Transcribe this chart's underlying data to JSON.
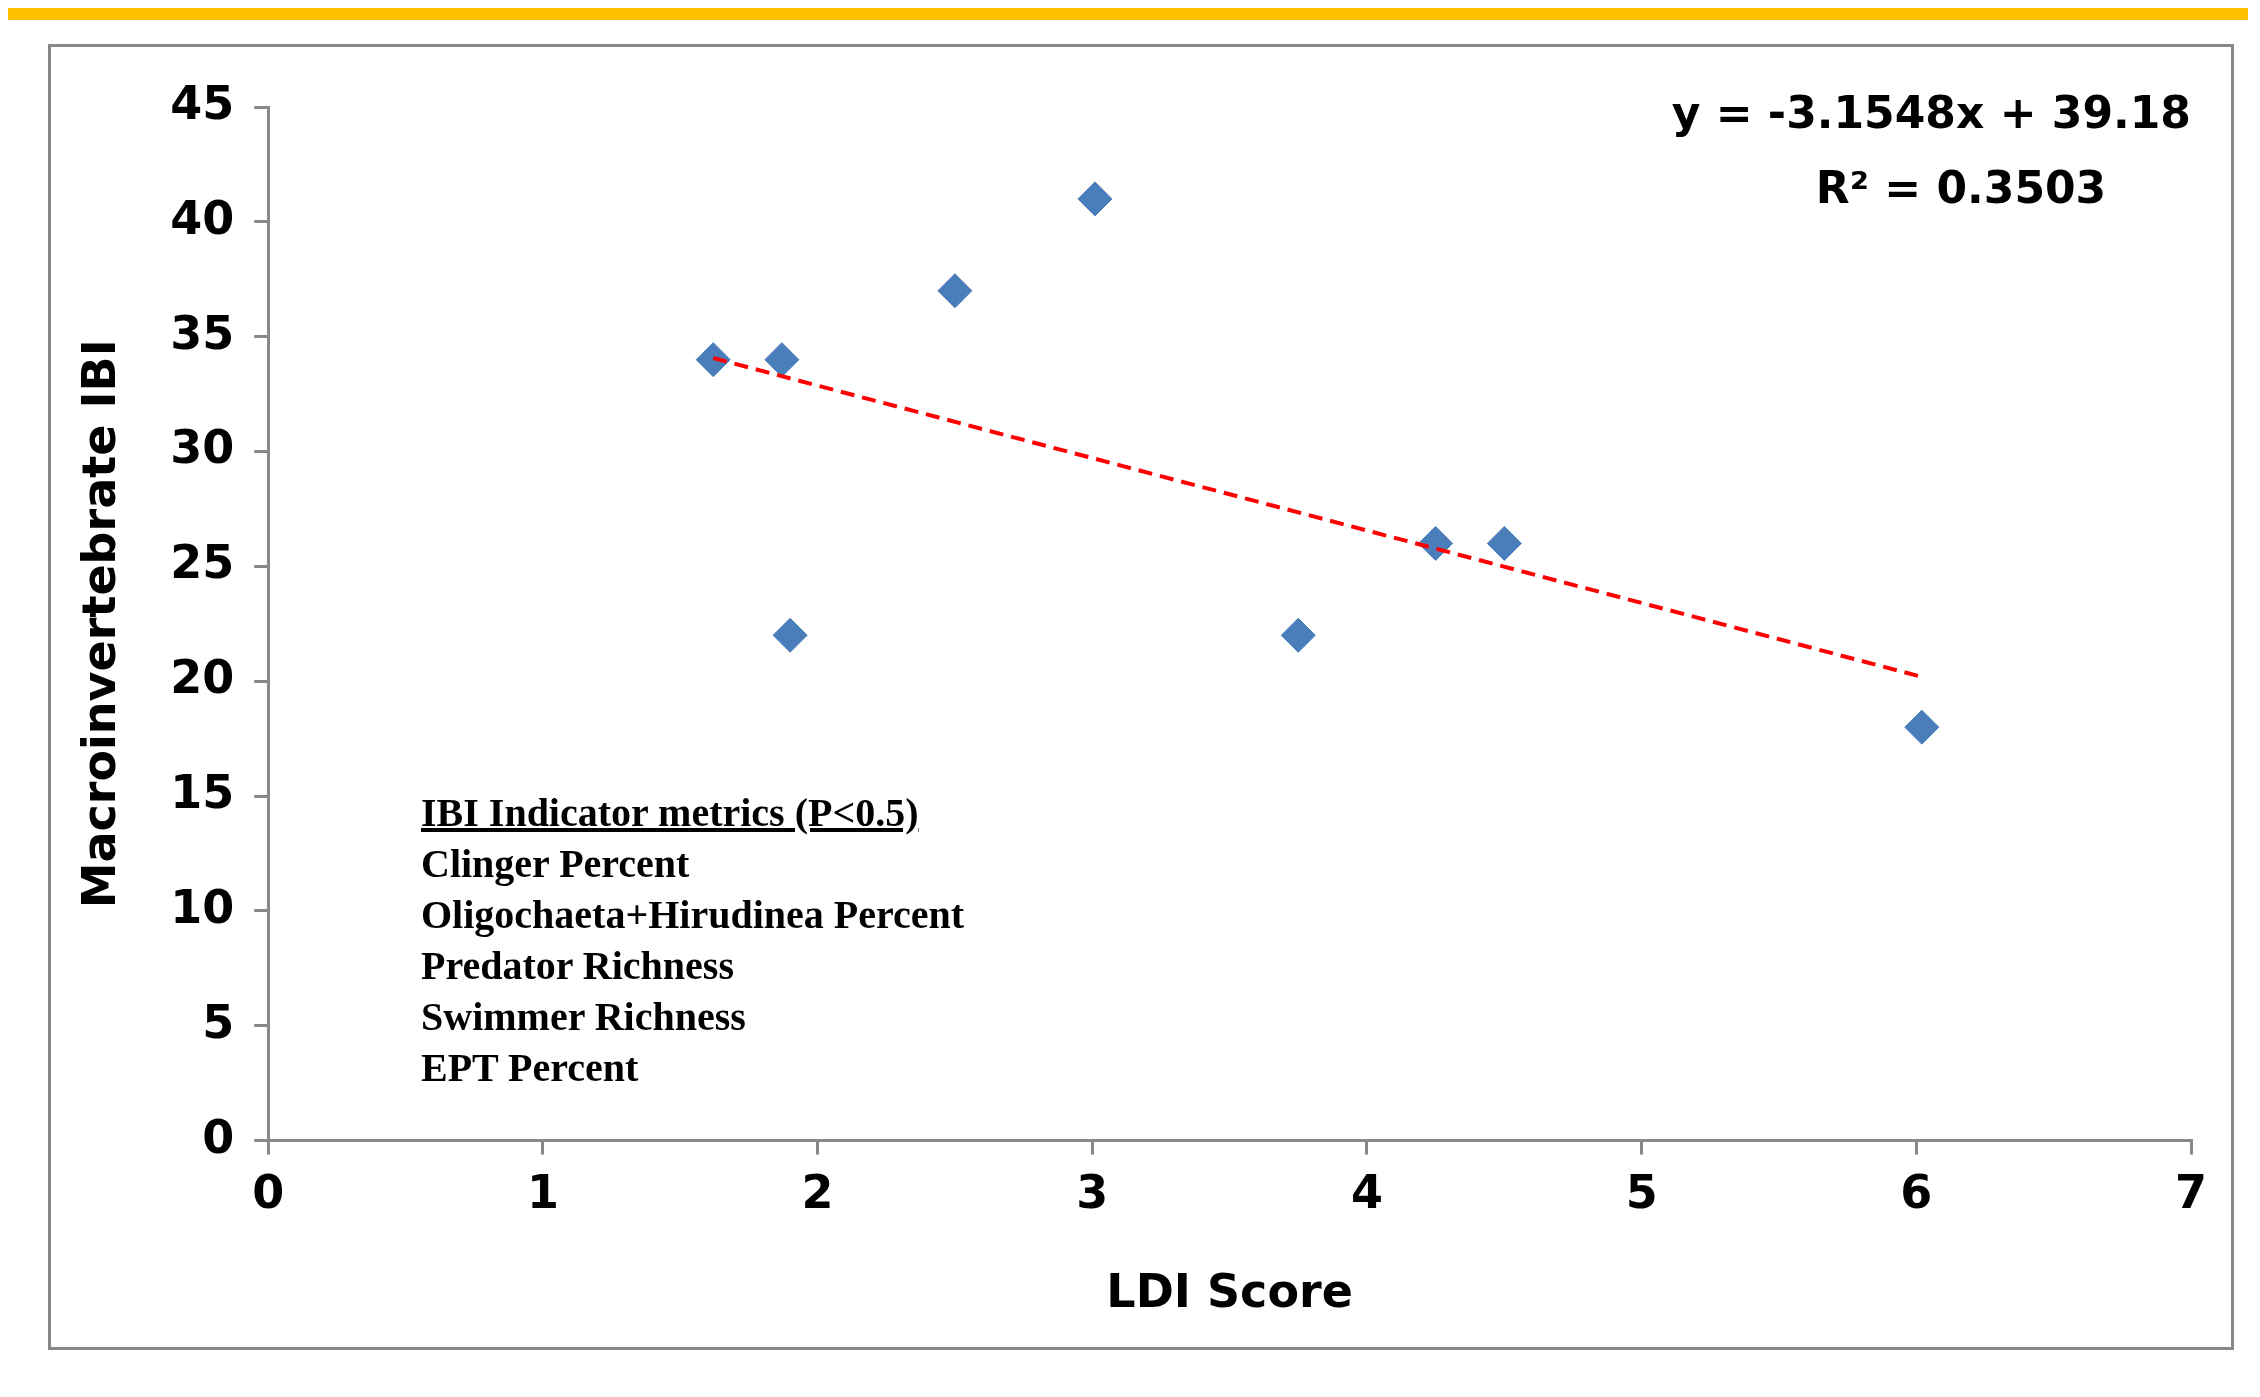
{
  "chart_data": {
    "type": "scatter",
    "xlabel": "LDI Score",
    "ylabel": "Macroinvertebrate IBI",
    "x": [
      1.62,
      1.87,
      1.9,
      2.5,
      3.01,
      3.75,
      4.25,
      4.5,
      6.02
    ],
    "series": [
      {
        "color": "#4a7ebb",
        "marker": "diamond",
        "values": [
          34,
          34,
          22,
          37,
          41,
          22,
          26,
          26,
          18
        ]
      },
      {
        "type": "line",
        "color": "#ff0000",
        "line_style": "dashed",
        "marker": "none",
        "x": [
          1.62,
          6.02
        ],
        "values": [
          34.07,
          20.19
        ]
      }
    ],
    "xlim": [
      0,
      7
    ],
    "xticks": [
      0,
      1,
      2,
      3,
      4,
      5,
      6,
      7
    ],
    "ylim": [
      0,
      45
    ],
    "yticks": [
      0,
      5,
      10,
      15,
      20,
      25,
      30,
      35,
      40,
      45
    ],
    "grid": false,
    "legend": false,
    "annotations": [
      "y = -3.1548x + 39.18",
      "R² = 0.3503",
      "IBI Indicator metrics (P<0.5)",
      "Clinger Percent",
      "Oligochaeta+Hirudinea Percent",
      "Predator Richness",
      "Swimmer Richness",
      "EPT Percent"
    ]
  }
}
